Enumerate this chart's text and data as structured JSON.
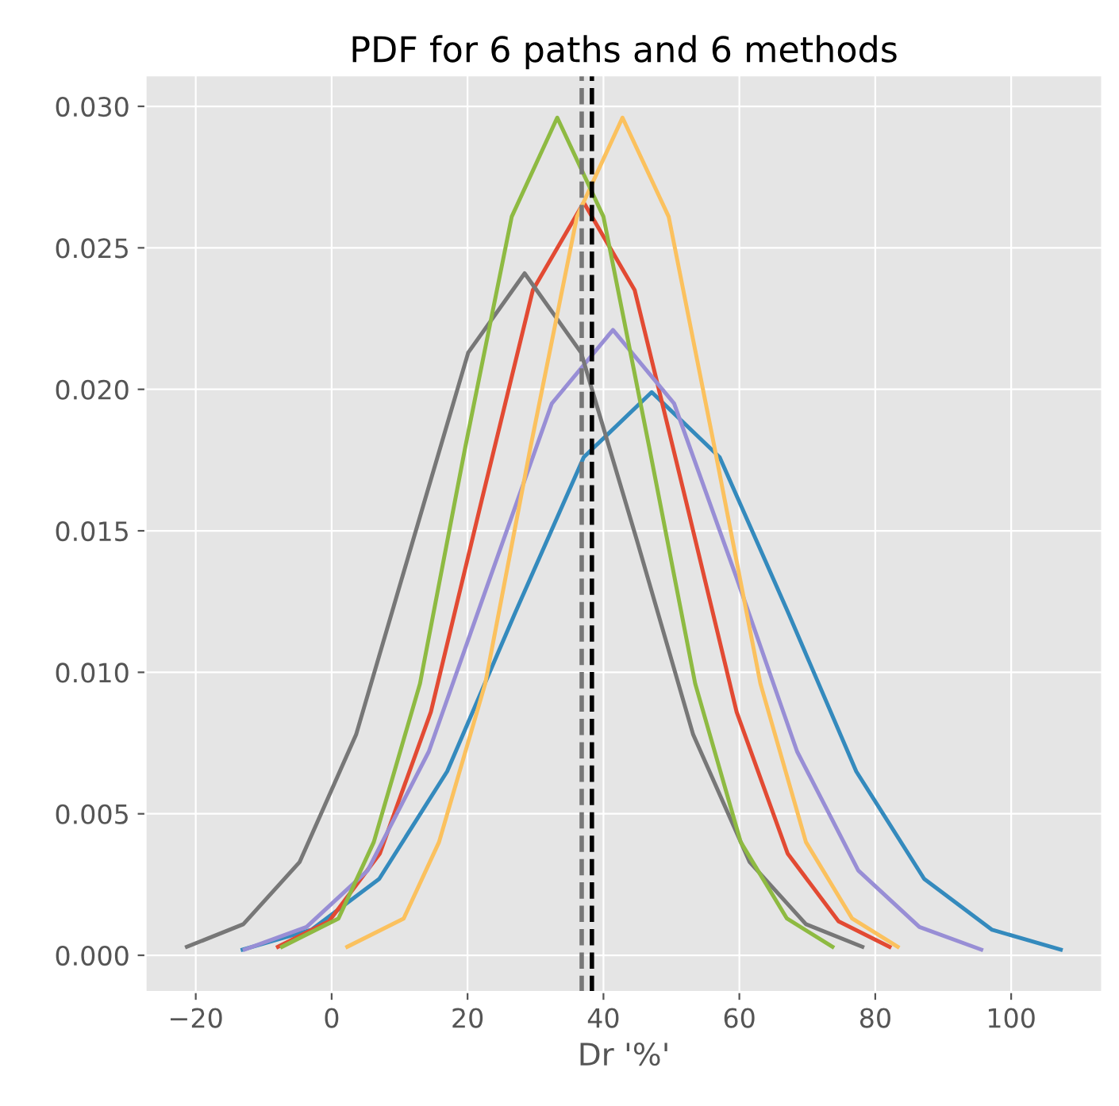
{
  "chart_data": {
    "type": "line",
    "title": "PDF for 6 paths and 6 methods",
    "xlabel": "Dr '%'",
    "series": [
      {
        "color": "#348abd",
        "x": [
          -13.1,
          -3.0,
          7.0,
          17.0,
          27.0,
          37.1,
          47.1,
          57.1,
          67.2,
          77.2,
          87.2,
          97.2,
          107.3
        ],
        "values": [
          0.0002,
          0.0009,
          0.0027,
          0.0065,
          0.0121,
          0.0176,
          0.0199,
          0.0176,
          0.0121,
          0.0065,
          0.0027,
          0.0009,
          0.0002
        ]
      },
      {
        "color": "#e24a33",
        "x": [
          -7.9,
          -0.4,
          7.1,
          14.6,
          22.1,
          29.6,
          37.1,
          44.6,
          52.1,
          59.6,
          67.1,
          74.6,
          82.1
        ],
        "values": [
          0.0003,
          0.0012,
          0.0036,
          0.0086,
          0.0161,
          0.0235,
          0.0266,
          0.0235,
          0.0161,
          0.0086,
          0.0036,
          0.0012,
          0.0003
        ]
      },
      {
        "color": "#988ed5",
        "x": [
          -12.8,
          -3.7,
          5.3,
          14.3,
          23.4,
          32.4,
          41.4,
          50.4,
          59.5,
          68.5,
          77.5,
          86.5,
          95.6
        ],
        "values": [
          0.0002,
          0.001,
          0.003,
          0.0072,
          0.0134,
          0.0195,
          0.0221,
          0.0195,
          0.0134,
          0.0072,
          0.003,
          0.001,
          0.0002
        ]
      },
      {
        "color": "#777777",
        "x": [
          -21.3,
          -13.0,
          -4.7,
          3.6,
          11.9,
          20.1,
          28.4,
          36.7,
          45.0,
          53.2,
          61.5,
          69.8,
          78.1
        ],
        "values": [
          0.0003,
          0.0011,
          0.0033,
          0.0078,
          0.0146,
          0.0213,
          0.0241,
          0.0213,
          0.0146,
          0.0078,
          0.0033,
          0.0011,
          0.0003
        ]
      },
      {
        "color": "#fbc15e",
        "x": [
          2.3,
          10.6,
          15.8,
          22.6,
          29.3,
          36.1,
          42.8,
          49.6,
          56.3,
          63.1,
          69.8,
          76.6,
          83.3
        ],
        "values": [
          0.0003,
          0.0013,
          0.004,
          0.0096,
          0.018,
          0.0261,
          0.0296,
          0.0261,
          0.018,
          0.0096,
          0.004,
          0.0013,
          0.0003
        ]
      },
      {
        "color": "#8eba42",
        "x": [
          -7.3,
          1.0,
          6.2,
          13.0,
          19.7,
          26.5,
          33.2,
          40.0,
          46.7,
          53.5,
          60.2,
          67.0,
          73.7
        ],
        "values": [
          0.0003,
          0.0013,
          0.004,
          0.0096,
          0.018,
          0.0261,
          0.0296,
          0.0261,
          0.018,
          0.0096,
          0.004,
          0.0013,
          0.0003
        ]
      }
    ],
    "ref_lines": [
      {
        "axis": "x",
        "value": 36.8,
        "color": "#777777",
        "line_style": "dashed"
      },
      {
        "axis": "x",
        "value": 38.3,
        "color": "#000000",
        "line_style": "dashed"
      }
    ],
    "xlim": [
      -27.4,
      113.4
    ],
    "ylim": [
      -0.0013,
      0.0311
    ],
    "xticks": [
      {
        "value": -20,
        "label": "−20"
      },
      0,
      20,
      40,
      60,
      80,
      100
    ],
    "yticks": [
      {
        "value": 0,
        "label": "0.000"
      },
      {
        "value": 0.005,
        "label": "0.005"
      },
      {
        "value": 0.01,
        "label": "0.010"
      },
      {
        "value": 0.015,
        "label": "0.015"
      },
      {
        "value": 0.02,
        "label": "0.020"
      },
      {
        "value": 0.025,
        "label": "0.025"
      },
      {
        "value": 0.03,
        "label": "0.030"
      }
    ],
    "grid": true,
    "legend": false
  }
}
